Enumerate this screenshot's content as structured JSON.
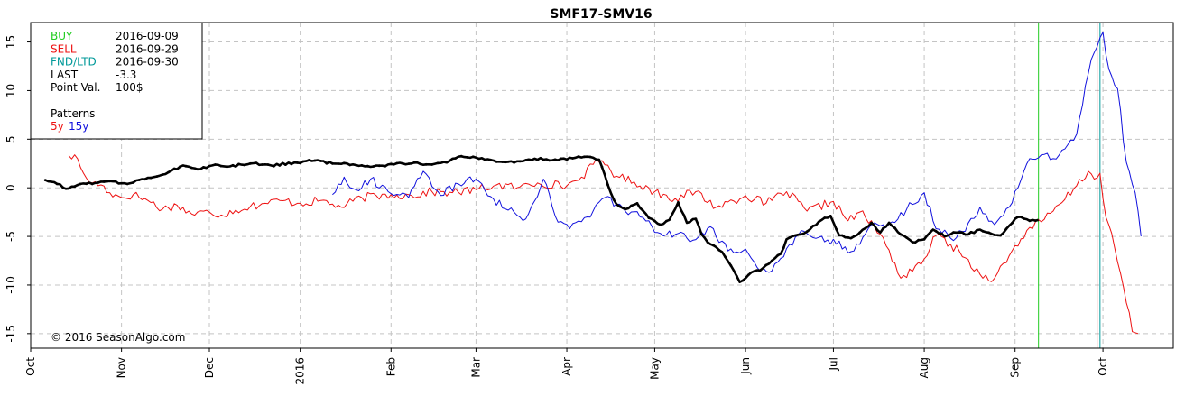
{
  "chart_data": {
    "type": "line",
    "title": "SMF17-SMV16",
    "xlabel": "",
    "ylabel": "",
    "ylim": [
      -16.5,
      17
    ],
    "yticks": [
      15,
      10,
      5,
      0,
      -5,
      -10,
      -15
    ],
    "xlim": [
      "2015-10-01",
      "2016-10-25"
    ],
    "xticks": [
      {
        "label": "Oct",
        "date": "2015-10-01"
      },
      {
        "label": "Nov",
        "date": "2015-11-01"
      },
      {
        "label": "Dec",
        "date": "2015-12-01"
      },
      {
        "label": "2016",
        "date": "2016-01-01"
      },
      {
        "label": "Feb",
        "date": "2016-02-01"
      },
      {
        "label": "Mar",
        "date": "2016-03-01"
      },
      {
        "label": "Apr",
        "date": "2016-04-01"
      },
      {
        "label": "May",
        "date": "2016-05-01"
      },
      {
        "label": "Jun",
        "date": "2016-06-01"
      },
      {
        "label": "Jul",
        "date": "2016-07-01"
      },
      {
        "label": "Aug",
        "date": "2016-08-01"
      },
      {
        "label": "Sep",
        "date": "2016-09-01"
      },
      {
        "label": "Oct",
        "date": "2016-10-01"
      }
    ],
    "grid": true,
    "vertical_markers": [
      {
        "label": "BUY",
        "date": "2016-09-09",
        "color": "#22cc22"
      },
      {
        "label": "SELL",
        "date": "2016-09-29",
        "color": "#cc0000"
      },
      {
        "label": "FND/LTD",
        "date": "2016-09-30",
        "color": "#009999"
      }
    ],
    "series": [
      {
        "name": "5y",
        "color": "#ee1111",
        "points": [
          [
            "2015-10-14",
            3.3
          ],
          [
            "2015-10-17",
            3.0
          ],
          [
            "2015-10-18",
            2.1
          ],
          [
            "2015-10-20",
            1.0
          ],
          [
            "2015-10-22",
            0.5
          ],
          [
            "2015-10-25",
            0.3
          ],
          [
            "2015-10-28",
            -0.5
          ],
          [
            "2015-11-01",
            -1.0
          ],
          [
            "2015-11-05",
            -0.7
          ],
          [
            "2015-11-10",
            -1.3
          ],
          [
            "2015-11-15",
            -2.2
          ],
          [
            "2015-11-20",
            -1.8
          ],
          [
            "2015-11-25",
            -2.7
          ],
          [
            "2015-12-01",
            -2.5
          ],
          [
            "2015-12-05",
            -2.8
          ],
          [
            "2015-12-10",
            -2.3
          ],
          [
            "2015-12-15",
            -1.9
          ],
          [
            "2015-12-20",
            -1.6
          ],
          [
            "2015-12-25",
            -1.3
          ],
          [
            "2016-01-01",
            -1.6
          ],
          [
            "2016-01-08",
            -1.3
          ],
          [
            "2016-01-15",
            -2.0
          ],
          [
            "2016-01-22",
            -1.0
          ],
          [
            "2016-02-01",
            -0.7
          ],
          [
            "2016-02-08",
            -0.8
          ],
          [
            "2016-02-15",
            -0.4
          ],
          [
            "2016-02-22",
            -0.5
          ],
          [
            "2016-03-01",
            -0.2
          ],
          [
            "2016-03-08",
            0.3
          ],
          [
            "2016-03-15",
            0.0
          ],
          [
            "2016-03-22",
            0.5
          ],
          [
            "2016-04-01",
            0.2
          ],
          [
            "2016-04-06",
            1.1
          ],
          [
            "2016-04-10",
            2.4
          ],
          [
            "2016-04-13",
            2.8
          ],
          [
            "2016-04-18",
            1.2
          ],
          [
            "2016-04-24",
            0.6
          ],
          [
            "2016-05-01",
            -0.4
          ],
          [
            "2016-05-08",
            -1.1
          ],
          [
            "2016-05-15",
            -0.4
          ],
          [
            "2016-05-22",
            -2.0
          ],
          [
            "2016-06-01",
            -0.8
          ],
          [
            "2016-06-08",
            -1.6
          ],
          [
            "2016-06-15",
            -0.4
          ],
          [
            "2016-06-22",
            -2.4
          ],
          [
            "2016-07-01",
            -1.4
          ],
          [
            "2016-07-06",
            -3.4
          ],
          [
            "2016-07-10",
            -2.5
          ],
          [
            "2016-07-15",
            -4.0
          ],
          [
            "2016-07-20",
            -6.4
          ],
          [
            "2016-07-24",
            -9.3
          ],
          [
            "2016-07-28",
            -8.6
          ],
          [
            "2016-08-01",
            -7.3
          ],
          [
            "2016-08-05",
            -4.9
          ],
          [
            "2016-08-10",
            -5.8
          ],
          [
            "2016-08-15",
            -7.2
          ],
          [
            "2016-08-20",
            -8.9
          ],
          [
            "2016-08-25",
            -9.3
          ],
          [
            "2016-08-30",
            -7.0
          ],
          [
            "2016-09-05",
            -4.4
          ],
          [
            "2016-09-10",
            -3.5
          ],
          [
            "2016-09-14",
            -2.4
          ],
          [
            "2016-09-18",
            -1.2
          ],
          [
            "2016-09-22",
            0.2
          ],
          [
            "2016-09-26",
            1.7
          ],
          [
            "2016-09-28",
            0.9
          ],
          [
            "2016-09-30",
            1.5
          ],
          [
            "2016-10-02",
            -3.0
          ],
          [
            "2016-10-05",
            -6.2
          ],
          [
            "2016-10-08",
            -10.2
          ],
          [
            "2016-10-11",
            -14.8
          ],
          [
            "2016-10-13",
            -15.0
          ]
        ]
      },
      {
        "name": "15y",
        "color": "#1111dd",
        "points": [
          [
            "2016-01-12",
            -0.7
          ],
          [
            "2016-01-16",
            1.1
          ],
          [
            "2016-01-20",
            -0.2
          ],
          [
            "2016-01-25",
            0.9
          ],
          [
            "2016-02-01",
            -0.6
          ],
          [
            "2016-02-07",
            -1.0
          ],
          [
            "2016-02-12",
            1.7
          ],
          [
            "2016-02-18",
            -0.8
          ],
          [
            "2016-02-24",
            0.4
          ],
          [
            "2016-03-01",
            0.9
          ],
          [
            "2016-03-06",
            -0.9
          ],
          [
            "2016-03-12",
            -2.3
          ],
          [
            "2016-03-18",
            -3.2
          ],
          [
            "2016-03-24",
            0.9
          ],
          [
            "2016-03-28",
            -2.9
          ],
          [
            "2016-04-02",
            -4.2
          ],
          [
            "2016-04-08",
            -3.0
          ],
          [
            "2016-04-14",
            -1.0
          ],
          [
            "2016-04-20",
            -2.0
          ],
          [
            "2016-04-26",
            -3.0
          ],
          [
            "2016-05-02",
            -4.6
          ],
          [
            "2016-05-08",
            -4.8
          ],
          [
            "2016-05-14",
            -5.4
          ],
          [
            "2016-05-20",
            -4.0
          ],
          [
            "2016-05-26",
            -6.5
          ],
          [
            "2016-06-01",
            -6.3
          ],
          [
            "2016-06-05",
            -8.2
          ],
          [
            "2016-06-09",
            -8.7
          ],
          [
            "2016-06-14",
            -7.1
          ],
          [
            "2016-06-20",
            -4.4
          ],
          [
            "2016-06-26",
            -5.1
          ],
          [
            "2016-07-02",
            -5.8
          ],
          [
            "2016-07-08",
            -6.5
          ],
          [
            "2016-07-14",
            -3.8
          ],
          [
            "2016-07-20",
            -3.7
          ],
          [
            "2016-07-26",
            -2.2
          ],
          [
            "2016-08-01",
            -0.5
          ],
          [
            "2016-08-05",
            -4.2
          ],
          [
            "2016-08-10",
            -5.2
          ],
          [
            "2016-08-14",
            -4.5
          ],
          [
            "2016-08-20",
            -2.0
          ],
          [
            "2016-08-25",
            -3.8
          ],
          [
            "2016-08-30",
            -2.0
          ],
          [
            "2016-09-03",
            0.8
          ],
          [
            "2016-09-06",
            3.0
          ],
          [
            "2016-09-10",
            3.4
          ],
          [
            "2016-09-14",
            3.0
          ],
          [
            "2016-09-18",
            4.0
          ],
          [
            "2016-09-22",
            5.5
          ],
          [
            "2016-09-25",
            10.5
          ],
          [
            "2016-09-27",
            13.2
          ],
          [
            "2016-09-29",
            14.5
          ],
          [
            "2016-10-01",
            16.0
          ],
          [
            "2016-10-03",
            12.2
          ],
          [
            "2016-10-06",
            10.2
          ],
          [
            "2016-10-09",
            2.6
          ],
          [
            "2016-10-12",
            -0.5
          ],
          [
            "2016-10-14",
            -5.0
          ]
        ]
      },
      {
        "name": "SMF17-SMV16",
        "color": "#000000",
        "points": [
          [
            "2015-10-06",
            0.8
          ],
          [
            "2015-10-10",
            0.4
          ],
          [
            "2015-10-13",
            -0.1
          ],
          [
            "2015-10-18",
            0.4
          ],
          [
            "2015-10-23",
            0.5
          ],
          [
            "2015-10-28",
            0.7
          ],
          [
            "2015-11-03",
            0.4
          ],
          [
            "2015-11-08",
            0.9
          ],
          [
            "2015-11-12",
            1.1
          ],
          [
            "2015-11-17",
            1.6
          ],
          [
            "2015-11-22",
            2.3
          ],
          [
            "2015-11-27",
            1.9
          ],
          [
            "2015-12-02",
            2.3
          ],
          [
            "2015-12-08",
            2.2
          ],
          [
            "2015-12-15",
            2.5
          ],
          [
            "2015-12-22",
            2.3
          ],
          [
            "2015-12-30",
            2.6
          ],
          [
            "2016-01-06",
            2.8
          ],
          [
            "2016-01-12",
            2.5
          ],
          [
            "2016-01-19",
            2.4
          ],
          [
            "2016-01-26",
            2.2
          ],
          [
            "2016-02-02",
            2.4
          ],
          [
            "2016-02-09",
            2.6
          ],
          [
            "2016-02-14",
            2.4
          ],
          [
            "2016-02-20",
            2.6
          ],
          [
            "2016-02-24",
            3.2
          ],
          [
            "2016-03-01",
            3.1
          ],
          [
            "2016-03-07",
            2.8
          ],
          [
            "2016-03-14",
            2.6
          ],
          [
            "2016-03-21",
            3.0
          ],
          [
            "2016-03-28",
            2.9
          ],
          [
            "2016-04-04",
            3.1
          ],
          [
            "2016-04-08",
            3.2
          ],
          [
            "2016-04-12",
            2.9
          ],
          [
            "2016-04-14",
            1.3
          ],
          [
            "2016-04-16",
            -0.5
          ],
          [
            "2016-04-18",
            -1.7
          ],
          [
            "2016-04-21",
            -2.2
          ],
          [
            "2016-04-25",
            -1.6
          ],
          [
            "2016-04-29",
            -3.1
          ],
          [
            "2016-05-03",
            -3.8
          ],
          [
            "2016-05-06",
            -3.3
          ],
          [
            "2016-05-09",
            -1.5
          ],
          [
            "2016-05-12",
            -3.6
          ],
          [
            "2016-05-15",
            -3.2
          ],
          [
            "2016-05-17",
            -4.8
          ],
          [
            "2016-05-20",
            -5.8
          ],
          [
            "2016-05-24",
            -6.6
          ],
          [
            "2016-05-27",
            -8.0
          ],
          [
            "2016-05-30",
            -9.7
          ],
          [
            "2016-06-03",
            -8.7
          ],
          [
            "2016-06-06",
            -8.5
          ],
          [
            "2016-06-10",
            -7.5
          ],
          [
            "2016-06-13",
            -6.8
          ],
          [
            "2016-06-15",
            -5.3
          ],
          [
            "2016-06-18",
            -4.9
          ],
          [
            "2016-06-22",
            -4.5
          ],
          [
            "2016-06-26",
            -3.5
          ],
          [
            "2016-06-30",
            -2.9
          ],
          [
            "2016-07-03",
            -4.9
          ],
          [
            "2016-07-07",
            -5.2
          ],
          [
            "2016-07-10",
            -4.6
          ],
          [
            "2016-07-14",
            -3.6
          ],
          [
            "2016-07-17",
            -4.6
          ],
          [
            "2016-07-20",
            -3.6
          ],
          [
            "2016-07-24",
            -4.8
          ],
          [
            "2016-07-28",
            -5.6
          ],
          [
            "2016-08-01",
            -5.3
          ],
          [
            "2016-08-04",
            -4.3
          ],
          [
            "2016-08-08",
            -5.0
          ],
          [
            "2016-08-12",
            -4.6
          ],
          [
            "2016-08-16",
            -4.8
          ],
          [
            "2016-08-20",
            -4.3
          ],
          [
            "2016-08-23",
            -4.6
          ],
          [
            "2016-08-27",
            -4.9
          ],
          [
            "2016-08-30",
            -3.9
          ],
          [
            "2016-09-02",
            -3.0
          ],
          [
            "2016-09-06",
            -3.4
          ],
          [
            "2016-09-09",
            -3.3
          ]
        ]
      }
    ],
    "legend": {
      "placement": "top-left",
      "rows": [
        {
          "key": "BUY",
          "value": "2016-09-09",
          "color": "#22cc22"
        },
        {
          "key": "SELL",
          "value": "2016-09-29",
          "color": "#ee1111"
        },
        {
          "key": "FND/LTD",
          "value": "2016-09-30",
          "color": "#009999"
        },
        {
          "key": "LAST",
          "value": "-3.3",
          "color": "#000000"
        },
        {
          "key": "Point Val.",
          "value": "100$",
          "color": "#000000"
        }
      ],
      "patterns_label": "Patterns",
      "patterns": [
        {
          "label": "5y",
          "color": "#ee1111"
        },
        {
          "label": "15y",
          "color": "#1111dd"
        }
      ]
    },
    "copyright": "© 2016 SeasonAlgo.com"
  }
}
